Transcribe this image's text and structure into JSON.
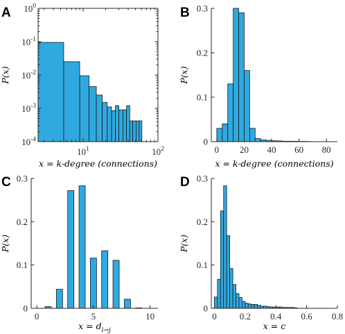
{
  "chart_data": [
    {
      "panel": "A",
      "type": "bar",
      "xscale": "log",
      "yscale": "log",
      "xlim": [
        2.5,
        100
      ],
      "ylim": [
        0.0001,
        1
      ],
      "xticks": [
        10,
        100
      ],
      "xtick_labels": [
        "10^1",
        "10^2"
      ],
      "yticks": [
        0.0001,
        0.001,
        0.01,
        0.1,
        1
      ],
      "ytick_labels": [
        "10^-4",
        "10^-3",
        "10^-2",
        "10^-1",
        "10^0"
      ],
      "xlabel": "x = k-degree (connections)",
      "ylabel": "P(x)",
      "bins": [
        {
          "x0": 2.5,
          "x1": 5.5,
          "value": 0.095
        },
        {
          "x0": 5.5,
          "x1": 9,
          "value": 0.025
        },
        {
          "x0": 9,
          "x1": 12,
          "value": 0.0095
        },
        {
          "x0": 12,
          "x1": 15,
          "value": 0.0045
        },
        {
          "x0": 15,
          "x1": 18,
          "value": 0.0025
        },
        {
          "x0": 18,
          "x1": 21,
          "value": 0.0015
        },
        {
          "x0": 21,
          "x1": 24,
          "value": 0.0011
        },
        {
          "x0": 24,
          "x1": 27,
          "value": 0.00085
        },
        {
          "x0": 27,
          "x1": 30,
          "value": 0.0012
        },
        {
          "x0": 30,
          "x1": 34,
          "value": 0.0009
        },
        {
          "x0": 34,
          "x1": 38,
          "value": 0.0009
        },
        {
          "x0": 38,
          "x1": 42,
          "value": 0.0012
        },
        {
          "x0": 42,
          "x1": 46,
          "value": 0.00042
        },
        {
          "x0": 46,
          "x1": 51,
          "value": 0.00042
        },
        {
          "x0": 51,
          "x1": 56,
          "value": 0.00042
        },
        {
          "x0": 56,
          "x1": 61,
          "value": 0.00042
        }
      ]
    },
    {
      "panel": "B",
      "type": "bar",
      "xlim": [
        -4,
        88
      ],
      "ylim": [
        0,
        0.3
      ],
      "xticks": [
        0,
        20,
        40,
        60,
        80
      ],
      "xtick_labels": [
        "0",
        "20",
        "40",
        "60",
        "80"
      ],
      "yticks": [
        0,
        0.1,
        0.2,
        0.3
      ],
      "ytick_labels": [
        "0",
        "0.1",
        "0.2",
        "0.3"
      ],
      "xlabel": "x = k-degree (connections)",
      "ylabel": "P(x)",
      "bins": [
        {
          "x0": 0,
          "x1": 4,
          "value": 0.03
        },
        {
          "x0": 4,
          "x1": 8,
          "value": 0.04
        },
        {
          "x0": 8,
          "x1": 12,
          "value": 0.13
        },
        {
          "x0": 12,
          "x1": 16,
          "value": 0.3
        },
        {
          "x0": 16,
          "x1": 20,
          "value": 0.29
        },
        {
          "x0": 20,
          "x1": 24,
          "value": 0.16
        },
        {
          "x0": 24,
          "x1": 28,
          "value": 0.03
        },
        {
          "x0": 28,
          "x1": 32,
          "value": 0.007
        },
        {
          "x0": 32,
          "x1": 36,
          "value": 0.004
        },
        {
          "x0": 36,
          "x1": 40,
          "value": 0.003
        },
        {
          "x0": 40,
          "x1": 44,
          "value": 0.002
        },
        {
          "x0": 44,
          "x1": 48,
          "value": 0.0015
        },
        {
          "x0": 48,
          "x1": 52,
          "value": 0.001
        },
        {
          "x0": 52,
          "x1": 56,
          "value": 0.001
        },
        {
          "x0": 56,
          "x1": 60,
          "value": 0.0008
        },
        {
          "x0": 60,
          "x1": 64,
          "value": 0.0006
        },
        {
          "x0": 64,
          "x1": 68,
          "value": 0.0005
        }
      ]
    },
    {
      "panel": "C",
      "type": "bar",
      "xlim": [
        -0.5,
        10.7
      ],
      "ylim": [
        0,
        0.3
      ],
      "xticks": [
        0,
        5,
        10
      ],
      "xtick_labels": [
        "0",
        "5",
        "10"
      ],
      "yticks": [
        0,
        0.1,
        0.2,
        0.3
      ],
      "ytick_labels": [
        "0",
        "0.1",
        "0.2",
        "0.3"
      ],
      "xlabel": "x = d_{i→j}",
      "ylabel": "P(x)",
      "bar_width": 0.55,
      "categories": [
        1,
        2,
        3,
        4,
        5,
        6,
        7,
        8,
        9
      ],
      "values": [
        0.004,
        0.044,
        0.272,
        0.283,
        0.116,
        0.133,
        0.111,
        0.021,
        0.001
      ]
    },
    {
      "panel": "D",
      "type": "bar",
      "xlim": [
        -0.02,
        0.8
      ],
      "ylim": [
        0,
        0.3
      ],
      "xticks": [
        0,
        0.2,
        0.4,
        0.6,
        0.8
      ],
      "xtick_labels": [
        "0",
        "0.2",
        "0.4",
        "0.6",
        "0.8"
      ],
      "yticks": [
        0,
        0.1,
        0.2,
        0.3
      ],
      "ytick_labels": [
        "0",
        "0.1",
        "0.2",
        "0.3"
      ],
      "xlabel": "x = c",
      "ylabel": "P(x)",
      "bin_width": 0.02,
      "bin_start": 0,
      "values": [
        0.026,
        0.067,
        0.225,
        0.283,
        0.168,
        0.092,
        0.055,
        0.034,
        0.025,
        0.016,
        0.012,
        0.01,
        0.009,
        0.009,
        0.007,
        0.005,
        0.005,
        0.004,
        0.003,
        0.003,
        0.003,
        0.003,
        0.002,
        0.002,
        0.002,
        0.002,
        0.001
      ]
    }
  ]
}
